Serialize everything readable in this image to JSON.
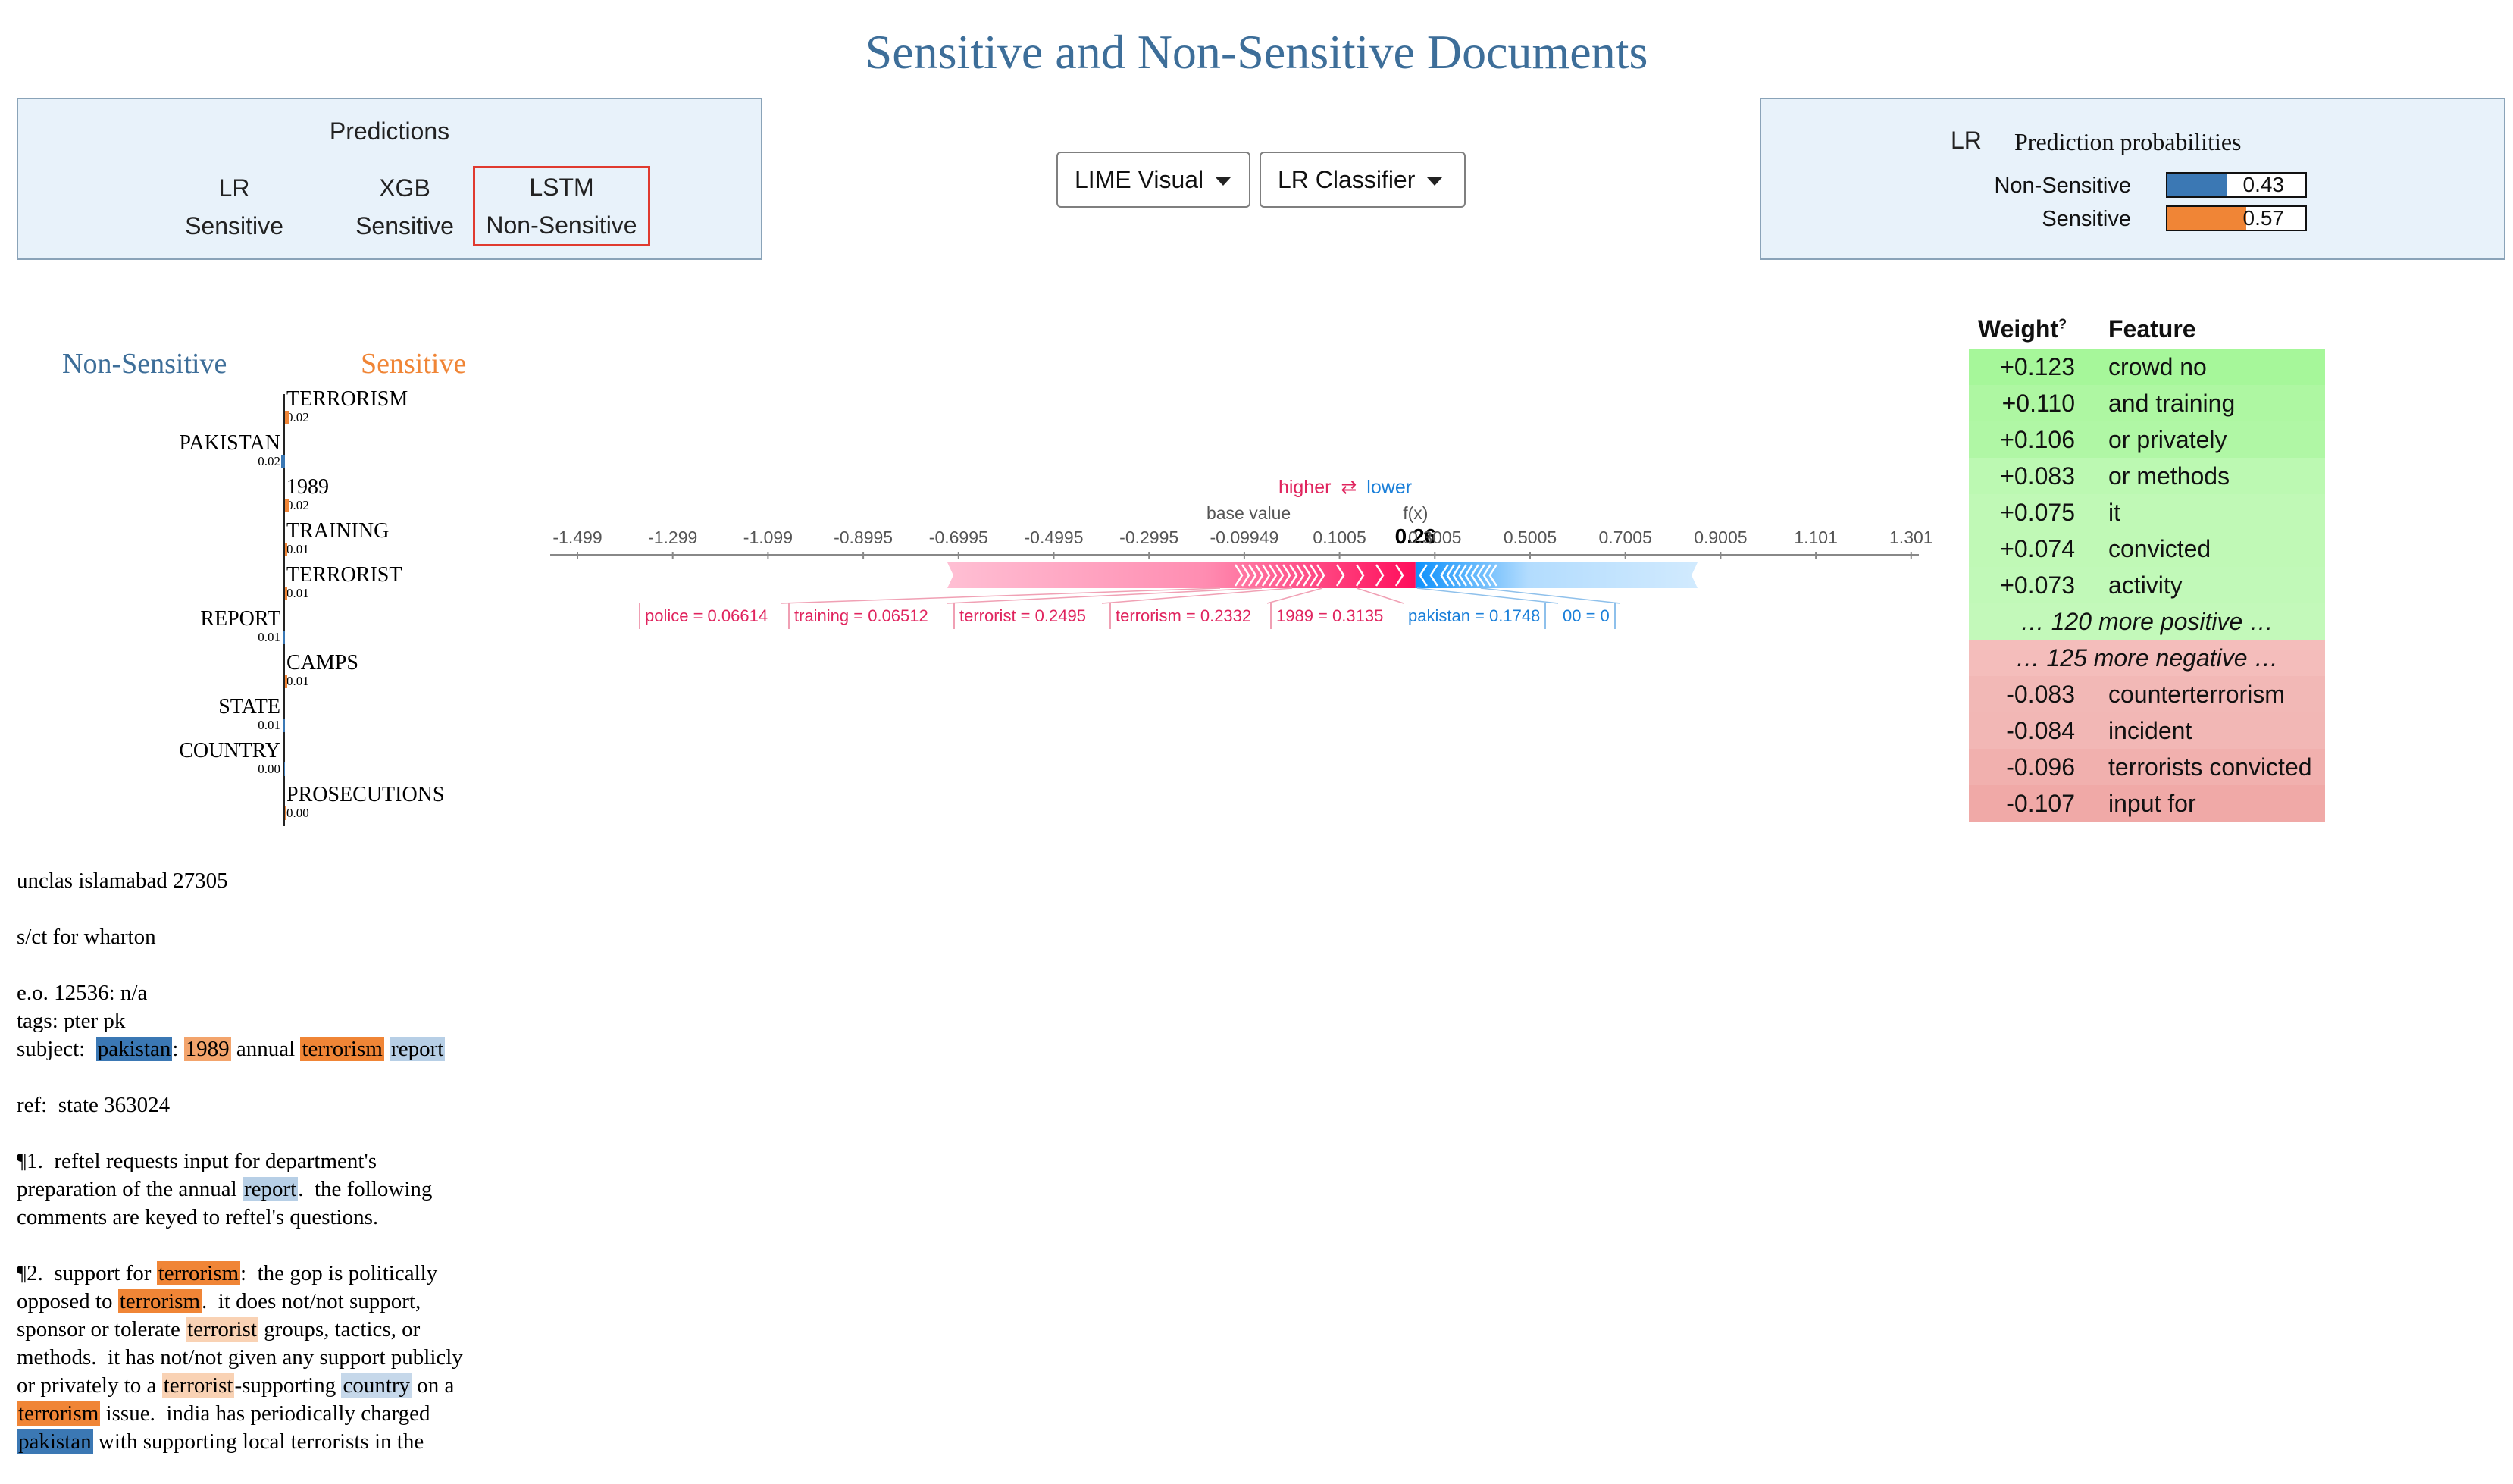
{
  "page_title": "Sensitive and Non-Sensitive Documents",
  "predictions": {
    "title": "Predictions",
    "models": [
      {
        "name": "LR",
        "label": "Sensitive"
      },
      {
        "name": "XGB",
        "label": "Sensitive"
      },
      {
        "name": "LSTM",
        "label": "Non-Sensitive",
        "highlighted": true
      }
    ]
  },
  "controls": {
    "visual_dropdown": "LIME Visual",
    "classifier_dropdown": "LR Classifier"
  },
  "prediction_probabilities": {
    "model": "LR",
    "title": "Prediction probabilities",
    "rows": [
      {
        "label": "Non-Sensitive",
        "value": "0.43",
        "fraction": 0.43,
        "color": "#3b78b4"
      },
      {
        "label": "Sensitive",
        "value": "0.57",
        "fraction": 0.57,
        "color": "#f08536"
      }
    ]
  },
  "lime_chart": {
    "left_heading": "Non-Sensitive",
    "right_heading": "Sensitive",
    "colors": {
      "non_sensitive": "#3b78b4",
      "sensitive": "#f08536"
    },
    "features": [
      {
        "name": "TERRORISM",
        "value": "0.02",
        "side": "sensitive",
        "weight": 0.02
      },
      {
        "name": "PAKISTAN",
        "value": "0.02",
        "side": "non_sensitive",
        "weight": 0.02
      },
      {
        "name": "1989",
        "value": "0.02",
        "side": "sensitive",
        "weight": 0.02
      },
      {
        "name": "TRAINING",
        "value": "0.01",
        "side": "sensitive",
        "weight": 0.01
      },
      {
        "name": "TERRORIST",
        "value": "0.01",
        "side": "sensitive",
        "weight": 0.01
      },
      {
        "name": "REPORT",
        "value": "0.01",
        "side": "non_sensitive",
        "weight": 0.01
      },
      {
        "name": "CAMPS",
        "value": "0.01",
        "side": "sensitive",
        "weight": 0.01
      },
      {
        "name": "STATE",
        "value": "0.01",
        "side": "non_sensitive",
        "weight": 0.01
      },
      {
        "name": "COUNTRY",
        "value": "0.00",
        "side": "non_sensitive",
        "weight": 0.0
      },
      {
        "name": "PROSECUTIONS",
        "value": "0.00",
        "side": "sensitive",
        "weight": 0.0
      }
    ]
  },
  "force_plot": {
    "higher_label": "higher",
    "lower_label": "lower",
    "arrows_symbol": "⇄",
    "base_value_label": "base value",
    "fx_label": "f(x)",
    "fx_value": "0.26",
    "fx_numeric": 0.2605,
    "base_numeric": -0.09949,
    "ticks": [
      "-1.499",
      "-1.299",
      "-1.099",
      "-0.8995",
      "-0.6995",
      "-0.4995",
      "-0.2995",
      "-0.09949",
      "0.1005",
      "0.3005",
      "0.5005",
      "0.7005",
      "0.9005",
      "1.101",
      "1.301"
    ],
    "positive_features": [
      "police = 0.06614",
      "training = 0.06512",
      "terrorist = 0.2495",
      "terrorism = 0.2332",
      "1989 = 0.3135"
    ],
    "negative_features": [
      "pakistan = 0.1748",
      "00 = 0"
    ],
    "colors": {
      "positive": "#ff0052",
      "negative": "#008bfb"
    }
  },
  "weights_table": {
    "weight_header": "Weight",
    "weight_help": "?",
    "feature_header": "Feature",
    "positive_rows": [
      {
        "weight": "+0.123",
        "feature": "crowd no",
        "color": "#a6f79a"
      },
      {
        "weight": "+0.110",
        "feature": "and training",
        "color": "#aef7a2"
      },
      {
        "weight": "+0.106",
        "feature": "or privately",
        "color": "#b0f7a5"
      },
      {
        "weight": "+0.083",
        "feature": "or methods",
        "color": "#bcf9b2"
      },
      {
        "weight": "+0.075",
        "feature": "it",
        "color": "#c0f9b6"
      },
      {
        "weight": "+0.074",
        "feature": "convicted",
        "color": "#c0f9b6"
      },
      {
        "weight": "+0.073",
        "feature": "activity",
        "color": "#c1f9b8"
      }
    ],
    "more_positive": "… 120 more positive …",
    "more_negative": "… 125 more negative …",
    "negative_rows": [
      {
        "weight": "-0.083",
        "feature": "counterterrorism",
        "color": "#f2b8b6"
      },
      {
        "weight": "-0.084",
        "feature": "incident",
        "color": "#f2b7b5"
      },
      {
        "weight": "-0.096",
        "feature": "terrorists convicted",
        "color": "#f1b0ae"
      },
      {
        "weight": "-0.107",
        "feature": "input for",
        "color": "#f0a9a7"
      }
    ],
    "more_positive_color": "#c3f9ba",
    "more_negative_color": "#f4bdbb"
  },
  "document": {
    "highlight_colors": {
      "pakistan": "#3b78b4",
      "1989": "#f3a46c",
      "terrorism": "#f08536",
      "report": "#b7cfe6",
      "terrorist": "#f9d2b4",
      "country": "#c6d8ea"
    },
    "paragraphs": [
      [
        {
          "t": "unclas islamabad 27305"
        }
      ],
      [
        {
          "t": "s/ct for wharton"
        }
      ],
      [
        {
          "t": "e.o. 12536: n/a\ntags: pter pk\nsubject:  "
        },
        {
          "t": "pakistan",
          "h": "pakistan"
        },
        {
          "t": ": "
        },
        {
          "t": "1989",
          "h": "1989"
        },
        {
          "t": " annual "
        },
        {
          "t": "terrorism",
          "h": "terrorism"
        },
        {
          "t": " "
        },
        {
          "t": "report",
          "h": "report"
        }
      ],
      [
        {
          "t": "ref:  state 363024"
        }
      ],
      [
        {
          "t": "¶1.  reftel requests input for department's\npreparation of the annual "
        },
        {
          "t": "report",
          "h": "report"
        },
        {
          "t": ".  the following\ncomments are keyed to reftel's questions."
        }
      ],
      [
        {
          "t": "¶2.  support for "
        },
        {
          "t": "terrorism",
          "h": "terrorism"
        },
        {
          "t": ":  the gop is politically\nopposed to "
        },
        {
          "t": "terrorism",
          "h": "terrorism"
        },
        {
          "t": ".  it does not/not support,\nsponsor or tolerate "
        },
        {
          "t": "terrorist",
          "h": "terrorist"
        },
        {
          "t": " groups, tactics, or\nmethods.  it has not/not given any support publicly\nor privately to a "
        },
        {
          "t": "terrorist",
          "h": "terrorist"
        },
        {
          "t": "-supporting "
        },
        {
          "t": "country",
          "h": "country"
        },
        {
          "t": " on a\n"
        },
        {
          "t": "terrorism",
          "h": "terrorism"
        },
        {
          "t": " issue.  india has periodically charged\n"
        },
        {
          "t": "pakistan",
          "h": "pakistan"
        },
        {
          "t": " with supporting local terrorists in the"
        }
      ]
    ]
  }
}
